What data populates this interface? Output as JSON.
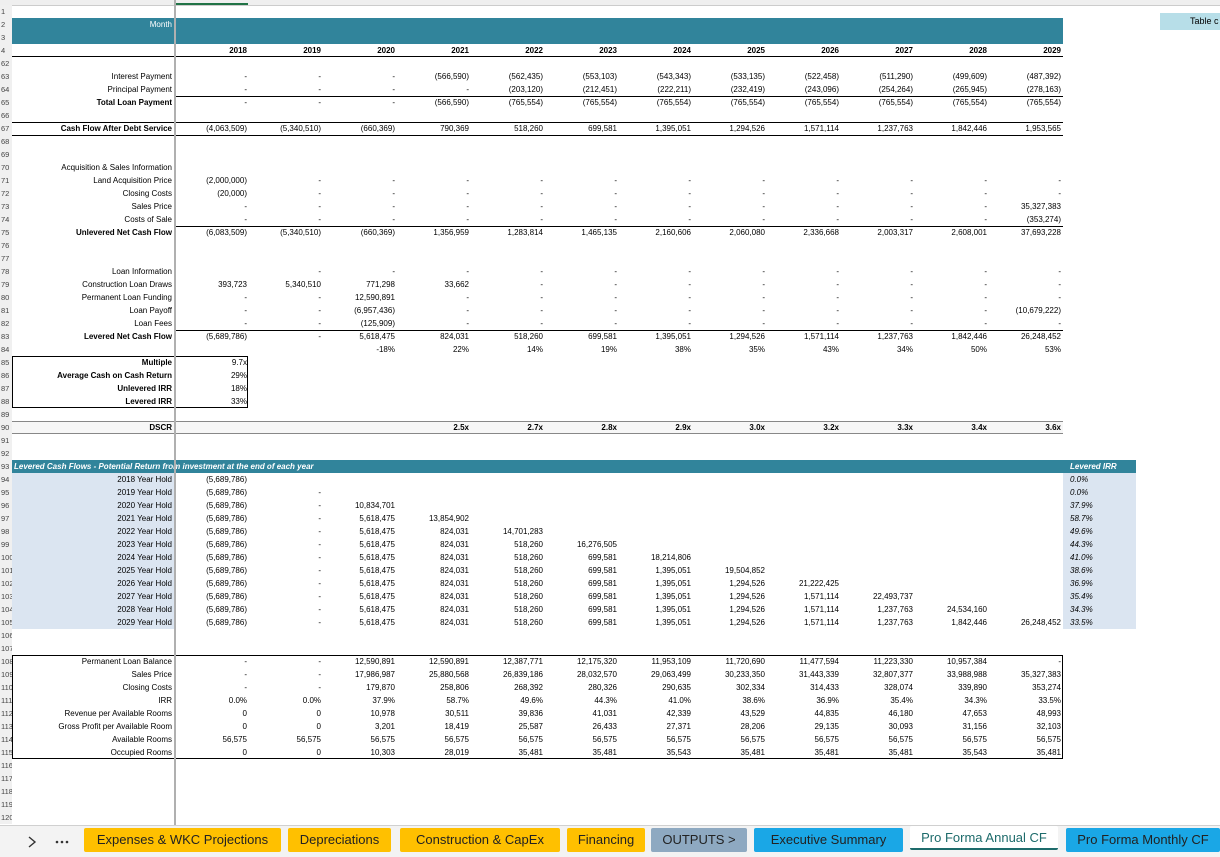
{
  "sheet": {
    "table_label": "Table c",
    "rows": [
      {
        "n": 1
      },
      {
        "n": 2,
        "label": "Month"
      },
      {
        "n": 3
      },
      {
        "n": 4,
        "cells": [
          2018,
          2019,
          2020,
          2021,
          2022,
          2023,
          2024,
          2025,
          2026,
          2027,
          2028,
          2029
        ]
      },
      {
        "n": 62
      },
      {
        "n": 63,
        "label": "Interest Payment",
        "cells": [
          "-",
          "-",
          "-",
          "(566,590)",
          "(562,435)",
          "(553,103)",
          "(543,343)",
          "(533,135)",
          "(522,458)",
          "(511,290)",
          "(499,609)",
          "(487,392)"
        ]
      },
      {
        "n": 64,
        "label": "Principal Payment",
        "cells": [
          "-",
          "-",
          "-",
          "-",
          "(203,120)",
          "(212,451)",
          "(222,211)",
          "(232,419)",
          "(243,096)",
          "(254,264)",
          "(265,945)",
          "(278,163)"
        ]
      },
      {
        "n": 65,
        "label": "Total Loan Payment",
        "cells": [
          "-",
          "-",
          "-",
          "(566,590)",
          "(765,554)",
          "(765,554)",
          "(765,554)",
          "(765,554)",
          "(765,554)",
          "(765,554)",
          "(765,554)",
          "(765,554)"
        ]
      },
      {
        "n": 66
      },
      {
        "n": 67,
        "label": "Cash Flow After Debt Service",
        "cells": [
          "(4,063,509)",
          "(5,340,510)",
          "(660,369)",
          "790,369",
          "518,260",
          "699,581",
          "1,395,051",
          "1,294,526",
          "1,571,114",
          "1,237,763",
          "1,842,446",
          "1,953,565"
        ]
      },
      {
        "n": 68
      },
      {
        "n": 69
      },
      {
        "n": 70,
        "label": "Acquisition & Sales Information"
      },
      {
        "n": 71,
        "label": "Land Acquisition Price",
        "cells": [
          "(2,000,000)",
          "-",
          "-",
          "-",
          "-",
          "-",
          "-",
          "-",
          "-",
          "-",
          "-",
          "-"
        ]
      },
      {
        "n": 72,
        "label": "Closing Costs",
        "cells": [
          "(20,000)",
          "-",
          "-",
          "-",
          "-",
          "-",
          "-",
          "-",
          "-",
          "-",
          "-",
          "-"
        ]
      },
      {
        "n": 73,
        "label": "Sales Price",
        "cells": [
          "-",
          "-",
          "-",
          "-",
          "-",
          "-",
          "-",
          "-",
          "-",
          "-",
          "-",
          "35,327,383"
        ]
      },
      {
        "n": 74,
        "label": "Costs of Sale",
        "cells": [
          "-",
          "-",
          "-",
          "-",
          "-",
          "-",
          "-",
          "-",
          "-",
          "-",
          "-",
          "(353,274)"
        ]
      },
      {
        "n": 75,
        "label": "Unlevered Net Cash Flow",
        "cells": [
          "(6,083,509)",
          "(5,340,510)",
          "(660,369)",
          "1,356,959",
          "1,283,814",
          "1,465,135",
          "2,160,606",
          "2,060,080",
          "2,336,668",
          "2,003,317",
          "2,608,001",
          "37,693,228"
        ]
      },
      {
        "n": 76
      },
      {
        "n": 77
      },
      {
        "n": 78,
        "label": "Loan Information",
        "cells": [
          null,
          "-",
          "-",
          "-",
          "-",
          "-",
          "-",
          "-",
          "-",
          "-",
          "-",
          "-"
        ]
      },
      {
        "n": 79,
        "label": "Construction Loan Draws",
        "cells": [
          "393,723",
          "5,340,510",
          "771,298",
          "33,662",
          "-",
          "-",
          "-",
          "-",
          "-",
          "-",
          "-",
          "-"
        ]
      },
      {
        "n": 80,
        "label": "Permanent Loan Funding",
        "cells": [
          "-",
          "-",
          "12,590,891",
          "-",
          "-",
          "-",
          "-",
          "-",
          "-",
          "-",
          "-",
          "-"
        ]
      },
      {
        "n": 81,
        "label": "Loan Payoff",
        "cells": [
          "-",
          "-",
          "(6,957,436)",
          "-",
          "-",
          "-",
          "-",
          "-",
          "-",
          "-",
          "-",
          "(10,679,222)"
        ]
      },
      {
        "n": 82,
        "label": "Loan Fees",
        "cells": [
          "-",
          "-",
          "(125,909)",
          "-",
          "-",
          "-",
          "-",
          "-",
          "-",
          "-",
          "-",
          "-"
        ]
      },
      {
        "n": 83,
        "label": "Levered Net Cash Flow",
        "cells": [
          "(5,689,786)",
          "-",
          "5,618,475",
          "824,031",
          "518,260",
          "699,581",
          "1,395,051",
          "1,294,526",
          "1,571,114",
          "1,237,763",
          "1,842,446",
          "26,248,452"
        ]
      },
      {
        "n": 84,
        "cells": [
          null,
          null,
          "-18%",
          "22%",
          "14%",
          "19%",
          "38%",
          "35%",
          "43%",
          "34%",
          "50%",
          "53%"
        ]
      },
      {
        "n": 85,
        "label": "Multiple",
        "cells": [
          "9.7x"
        ]
      },
      {
        "n": 86,
        "label": "Average Cash on Cash Return",
        "cells": [
          "29%"
        ]
      },
      {
        "n": 87,
        "label": "Unlevered IRR",
        "cells": [
          "18%"
        ]
      },
      {
        "n": 88,
        "label": "Levered IRR",
        "cells": [
          "33%"
        ]
      },
      {
        "n": 89
      },
      {
        "n": 90,
        "label": "DSCR",
        "cells": [
          null,
          null,
          null,
          "2.5x",
          "2.7x",
          "2.8x",
          "2.9x",
          "3.0x",
          "3.2x",
          "3.3x",
          "3.4x",
          "3.6x"
        ]
      },
      {
        "n": 91
      },
      {
        "n": 92
      },
      {
        "n": 93,
        "label": "Levered Cash Flows - Potential Return from investment at the end of each year",
        "irr": "Levered IRR"
      },
      {
        "n": 94,
        "label": "2018 Year Hold",
        "cells": [
          "(5,689,786)"
        ],
        "irr": "0.0%"
      },
      {
        "n": 95,
        "label": "2019 Year Hold",
        "cells": [
          "(5,689,786)",
          "-"
        ],
        "irr": "0.0%"
      },
      {
        "n": 96,
        "label": "2020 Year Hold",
        "cells": [
          "(5,689,786)",
          "-",
          "10,834,701"
        ],
        "irr": "37.9%"
      },
      {
        "n": 97,
        "label": "2021 Year Hold",
        "cells": [
          "(5,689,786)",
          "-",
          "5,618,475",
          "13,854,902"
        ],
        "irr": "58.7%"
      },
      {
        "n": 98,
        "label": "2022 Year Hold",
        "cells": [
          "(5,689,786)",
          "-",
          "5,618,475",
          "824,031",
          "14,701,283"
        ],
        "irr": "49.6%"
      },
      {
        "n": 99,
        "label": "2023 Year Hold",
        "cells": [
          "(5,689,786)",
          "-",
          "5,618,475",
          "824,031",
          "518,260",
          "16,276,505"
        ],
        "irr": "44.3%"
      },
      {
        "n": 100,
        "label": "2024 Year Hold",
        "cells": [
          "(5,689,786)",
          "-",
          "5,618,475",
          "824,031",
          "518,260",
          "699,581",
          "18,214,806"
        ],
        "irr": "41.0%"
      },
      {
        "n": 101,
        "label": "2025 Year Hold",
        "cells": [
          "(5,689,786)",
          "-",
          "5,618,475",
          "824,031",
          "518,260",
          "699,581",
          "1,395,051",
          "19,504,852"
        ],
        "irr": "38.6%"
      },
      {
        "n": 102,
        "label": "2026 Year Hold",
        "cells": [
          "(5,689,786)",
          "-",
          "5,618,475",
          "824,031",
          "518,260",
          "699,581",
          "1,395,051",
          "1,294,526",
          "21,222,425"
        ],
        "irr": "36.9%"
      },
      {
        "n": 103,
        "label": "2027 Year Hold",
        "cells": [
          "(5,689,786)",
          "-",
          "5,618,475",
          "824,031",
          "518,260",
          "699,581",
          "1,395,051",
          "1,294,526",
          "1,571,114",
          "22,493,737"
        ],
        "irr": "35.4%"
      },
      {
        "n": 104,
        "label": "2028 Year Hold",
        "cells": [
          "(5,689,786)",
          "-",
          "5,618,475",
          "824,031",
          "518,260",
          "699,581",
          "1,395,051",
          "1,294,526",
          "1,571,114",
          "1,237,763",
          "24,534,160"
        ],
        "irr": "34.3%"
      },
      {
        "n": 105,
        "label": "2029 Year Hold",
        "cells": [
          "(5,689,786)",
          "-",
          "5,618,475",
          "824,031",
          "518,260",
          "699,581",
          "1,395,051",
          "1,294,526",
          "1,571,114",
          "1,237,763",
          "1,842,446",
          "26,248,452"
        ],
        "irr": "33.5%"
      },
      {
        "n": 106
      },
      {
        "n": 107
      },
      {
        "n": 108,
        "label": "Permanent Loan Balance",
        "cells": [
          "-",
          "-",
          "12,590,891",
          "12,590,891",
          "12,387,771",
          "12,175,320",
          "11,953,109",
          "11,720,690",
          "11,477,594",
          "11,223,330",
          "10,957,384",
          "-"
        ]
      },
      {
        "n": 109,
        "label": "Sales Price",
        "cells": [
          "-",
          "-",
          "17,986,987",
          "25,880,568",
          "26,839,186",
          "28,032,570",
          "29,063,499",
          "30,233,350",
          "31,443,339",
          "32,807,377",
          "33,988,988",
          "35,327,383"
        ]
      },
      {
        "n": 110,
        "label": "Closing Costs",
        "cells": [
          "-",
          "-",
          "179,870",
          "258,806",
          "268,392",
          "280,326",
          "290,635",
          "302,334",
          "314,433",
          "328,074",
          "339,890",
          "353,274"
        ]
      },
      {
        "n": 111,
        "label": "IRR",
        "cells": [
          "0.0%",
          "0.0%",
          "37.9%",
          "58.7%",
          "49.6%",
          "44.3%",
          "41.0%",
          "38.6%",
          "36.9%",
          "35.4%",
          "34.3%",
          "33.5%"
        ]
      },
      {
        "n": 112,
        "label": "Revenue per Available Rooms",
        "cells": [
          0,
          0,
          "10,978",
          "30,511",
          "39,836",
          "41,031",
          "42,339",
          "43,529",
          "44,835",
          "46,180",
          "47,653",
          "48,993"
        ]
      },
      {
        "n": 113,
        "label": "Gross Profit per Available Room",
        "cells": [
          0,
          0,
          "3,201",
          "18,419",
          "25,587",
          "26,433",
          "27,371",
          "28,206",
          "29,135",
          "30,093",
          "31,156",
          "32,103"
        ]
      },
      {
        "n": 114,
        "label": "Available Rooms",
        "cells": [
          "56,575",
          "56,575",
          "56,575",
          "56,575",
          "56,575",
          "56,575",
          "56,575",
          "56,575",
          "56,575",
          "56,575",
          "56,575",
          "56,575"
        ]
      },
      {
        "n": 115,
        "label": "Occupied Rooms",
        "cells": [
          0,
          0,
          "10,303",
          "28,019",
          "35,481",
          "35,481",
          "35,543",
          "35,481",
          "35,481",
          "35,481",
          "35,543",
          "35,481"
        ]
      },
      {
        "n": 116
      },
      {
        "n": 117
      },
      {
        "n": 118
      },
      {
        "n": 119
      },
      {
        "n": 120
      }
    ],
    "tabs": [
      "Expenses & WKC Projections",
      "Depreciations",
      "Construction & CapEx",
      "Financing",
      "OUTPUTS >",
      "Executive Summary",
      "Pro Forma Annual CF",
      "Pro Forma Monthly CF"
    ]
  }
}
